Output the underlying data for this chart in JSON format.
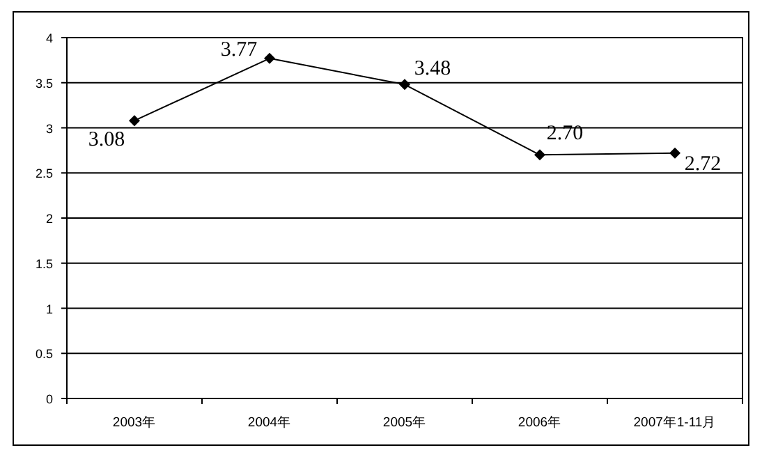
{
  "chart_data": {
    "type": "line",
    "categories": [
      "2003年",
      "2004年",
      "2005年",
      "2006年",
      "2007年1-11月"
    ],
    "series": [
      {
        "color": "#000000",
        "values": [
          3.08,
          3.77,
          3.48,
          2.7,
          2.72
        ],
        "value_labels": [
          "3.08",
          "3.77",
          "3.48",
          "2.70",
          "2.72"
        ]
      }
    ],
    "ylim": [
      0,
      4
    ],
    "yticks": [
      0,
      0.5,
      1,
      1.5,
      2,
      2.5,
      3,
      3.5,
      4
    ],
    "grid": "y",
    "marker": "diamond",
    "line_style": "solid"
  }
}
